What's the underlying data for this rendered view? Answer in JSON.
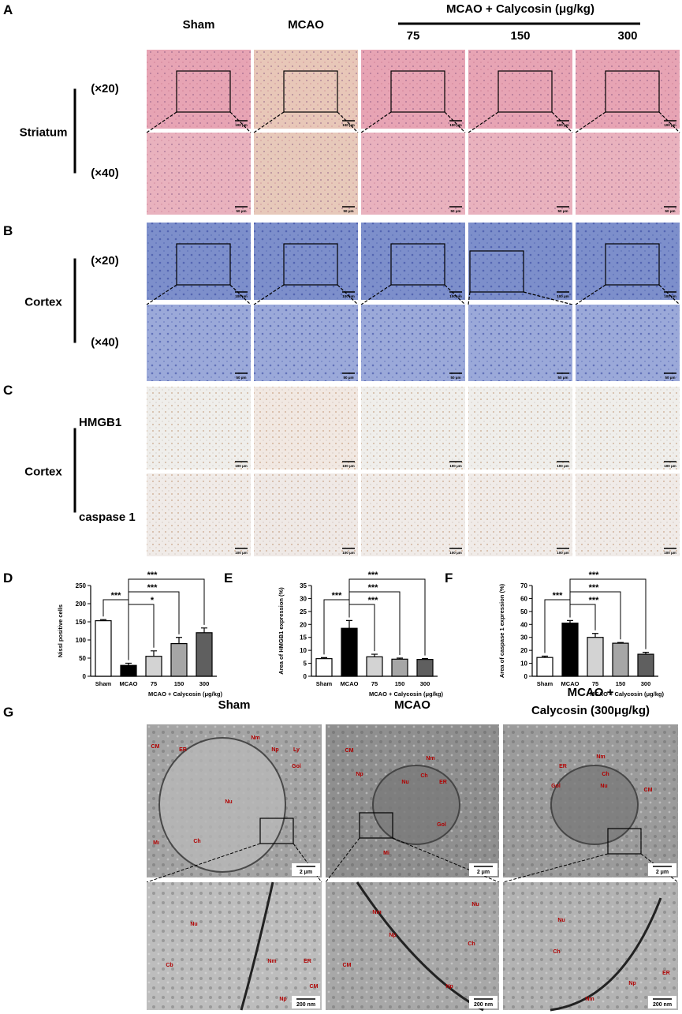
{
  "histology": {
    "columns": [
      "Sham",
      "MCAO"
    ],
    "group_header": "MCAO + Calycosin (μg/kg)",
    "group_columns": [
      "75",
      "150",
      "300"
    ],
    "panels": [
      {
        "label": "A",
        "tissue": "Striatum",
        "rows": [
          "(×20)",
          "(×40)"
        ],
        "scales": [
          "100 μm",
          "50 μm"
        ]
      },
      {
        "label": "B",
        "tissue": "Cortex",
        "rows": [
          "(×20)",
          "(×40)"
        ],
        "scales": [
          "100 μm",
          "50 μm"
        ]
      },
      {
        "label": "C",
        "tissue": "Cortex",
        "rows": [
          "HMGB1",
          "caspase 1"
        ],
        "scales": [
          "100 μm",
          "100 μm"
        ]
      }
    ]
  },
  "chart_data": [
    {
      "type": "bar",
      "label": "D",
      "ylabel": "Nissl positive cells",
      "xlabel": "MCAO + Calycosin (μg/kg)",
      "categories": [
        "Sham",
        "MCAO",
        "75",
        "150",
        "300"
      ],
      "values": [
        153,
        30,
        55,
        90,
        120
      ],
      "errors": [
        3,
        6,
        15,
        17,
        13
      ],
      "colors": [
        "#ffffff",
        "#000000",
        "#d3d3d3",
        "#a6a6a6",
        "#5f5f5f"
      ],
      "ylim": [
        0,
        250
      ],
      "yticks": [
        0,
        50,
        100,
        150,
        200,
        250
      ],
      "annotations": [
        {
          "from": "Sham",
          "to": "MCAO",
          "label": "***"
        },
        {
          "from": "MCAO",
          "to": "75",
          "label": "*"
        },
        {
          "from": "MCAO",
          "to": "150",
          "label": "***"
        },
        {
          "from": "MCAO",
          "to": "300",
          "label": "***"
        }
      ]
    },
    {
      "type": "bar",
      "label": "E",
      "ylabel": "Area of HMGB1 expression (%)",
      "xlabel": "MCAO + Calycosin (μg/kg)",
      "categories": [
        "Sham",
        "MCAO",
        "75",
        "150",
        "300"
      ],
      "values": [
        6.8,
        18.5,
        7.5,
        6.6,
        6.5
      ],
      "errors": [
        0.4,
        3,
        1,
        0.4,
        0.3
      ],
      "colors": [
        "#ffffff",
        "#000000",
        "#d3d3d3",
        "#a6a6a6",
        "#5f5f5f"
      ],
      "ylim": [
        0,
        35
      ],
      "yticks": [
        0,
        5,
        10,
        15,
        20,
        25,
        30,
        35
      ],
      "annotations": [
        {
          "from": "Sham",
          "to": "MCAO",
          "label": "***"
        },
        {
          "from": "MCAO",
          "to": "75",
          "label": "***"
        },
        {
          "from": "MCAO",
          "to": "150",
          "label": "***"
        },
        {
          "from": "MCAO",
          "to": "300",
          "label": "***"
        }
      ]
    },
    {
      "type": "bar",
      "label": "F",
      "ylabel": "Area of caspase 1 expression (%)",
      "xlabel": "MCAO + Calycosin (μg/kg)",
      "categories": [
        "Sham",
        "MCAO",
        "75",
        "150",
        "300"
      ],
      "values": [
        14.5,
        41,
        30,
        25.5,
        17
      ],
      "errors": [
        1,
        2,
        3,
        0.5,
        1.5
      ],
      "colors": [
        "#ffffff",
        "#000000",
        "#d3d3d3",
        "#a6a6a6",
        "#5f5f5f"
      ],
      "ylim": [
        0,
        70
      ],
      "yticks": [
        0,
        10,
        20,
        30,
        40,
        50,
        60,
        70
      ],
      "annotations": [
        {
          "from": "Sham",
          "to": "MCAO",
          "label": "***"
        },
        {
          "from": "MCAO",
          "to": "75",
          "label": "***"
        },
        {
          "from": "MCAO",
          "to": "150",
          "label": "***"
        },
        {
          "from": "MCAO",
          "to": "300",
          "label": "***"
        }
      ]
    }
  ],
  "em": {
    "label": "G",
    "headers": [
      [
        "Sham"
      ],
      [
        "MCAO"
      ],
      [
        "MCAO +",
        "Calycosin (300μg/kg)"
      ]
    ],
    "scales": [
      "2 μm",
      "200 nm"
    ],
    "images": [
      [
        "CM",
        "ER",
        "Nm",
        "Np",
        "Ly",
        "Gol",
        "Nu",
        "Ch",
        "Mi"
      ],
      [
        "CM",
        "Nm",
        "Np",
        "Nu",
        "Ch",
        "ER",
        "Gol",
        "Mi"
      ],
      [
        "Nm",
        "ER",
        "Ch",
        "Gol",
        "Nu",
        "CM"
      ],
      [
        "Nu",
        "Cb",
        "Nm",
        "ER",
        "Np",
        "CM"
      ],
      [
        "Nu",
        "Nm",
        "Np",
        "Ch",
        "CM",
        "Np"
      ],
      [
        "Nu",
        "Ch",
        "Np",
        "ER",
        "Nm"
      ]
    ]
  }
}
